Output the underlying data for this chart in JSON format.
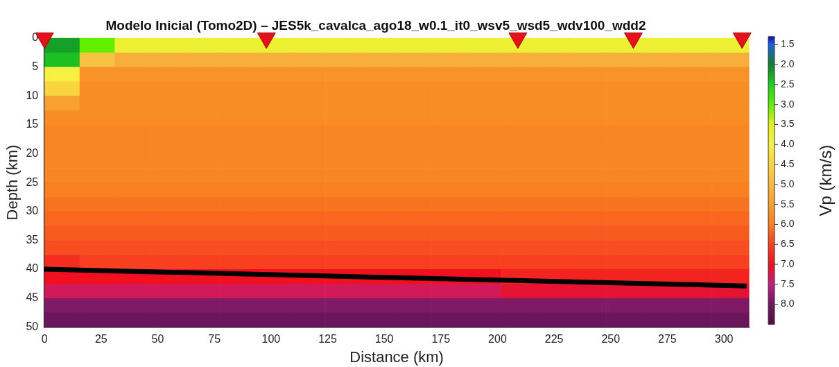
{
  "chart_data": {
    "type": "heatmap",
    "title": "Modelo Inicial (Tomo2D) – JES5k_cavalca_ago18_w0.1_it0_wsv5_wsd5_wdv100_wdd2",
    "xlabel": "Distance (km)",
    "ylabel": "Depth (km)",
    "clabel": "Vp (km/s)",
    "x": [
      7.75,
      23.25,
      38.75,
      54.25,
      69.75,
      85.25,
      100.75,
      116.25,
      131.75,
      147.25,
      162.75,
      178.25,
      193.75,
      209.25,
      224.75,
      240.25,
      255.75,
      271.25,
      286.75,
      302.25
    ],
    "cells": [
      [
        2.2,
        3.0,
        3.8,
        3.8,
        3.8,
        3.8,
        3.8,
        3.8,
        3.8,
        3.8,
        3.8,
        3.8,
        3.8,
        3.8,
        3.8,
        3.8,
        3.8,
        3.8,
        3.8,
        3.8
      ],
      [
        2.4,
        4.8,
        5.2,
        5.2,
        5.2,
        5.2,
        5.2,
        5.2,
        5.2,
        5.2,
        5.2,
        5.2,
        5.2,
        5.2,
        5.2,
        5.2,
        5.2,
        5.2,
        5.2,
        5.2
      ],
      [
        4.0,
        5.7,
        5.7,
        5.7,
        5.7,
        5.7,
        5.7,
        5.7,
        5.7,
        5.7,
        5.7,
        5.7,
        5.7,
        5.7,
        5.7,
        5.7,
        5.7,
        5.7,
        5.7,
        5.7
      ],
      [
        4.5,
        5.8,
        5.8,
        5.8,
        5.8,
        5.8,
        5.8,
        5.8,
        5.8,
        5.8,
        5.8,
        5.8,
        5.8,
        5.8,
        5.8,
        5.8,
        5.8,
        5.8,
        5.8,
        5.8
      ],
      [
        5.5,
        5.8,
        5.8,
        5.8,
        5.8,
        5.8,
        5.8,
        5.8,
        5.8,
        5.8,
        5.8,
        5.8,
        5.8,
        5.8,
        5.8,
        5.8,
        5.8,
        5.8,
        5.8,
        5.8
      ],
      [
        5.8,
        5.8,
        5.8,
        5.8,
        5.8,
        5.8,
        5.8,
        5.8,
        5.8,
        5.8,
        5.8,
        5.8,
        5.8,
        5.8,
        5.8,
        5.8,
        5.8,
        5.8,
        5.8,
        5.8
      ],
      [
        5.9,
        5.9,
        5.9,
        5.9,
        5.9,
        5.9,
        5.9,
        5.9,
        5.9,
        5.9,
        5.9,
        5.9,
        5.9,
        5.9,
        5.9,
        5.9,
        5.9,
        5.9,
        5.9,
        5.9
      ],
      [
        5.9,
        5.9,
        5.9,
        5.9,
        5.9,
        5.9,
        5.9,
        5.9,
        5.9,
        5.9,
        5.9,
        5.9,
        5.9,
        5.9,
        5.9,
        5.9,
        5.9,
        5.9,
        5.9,
        5.9
      ],
      [
        5.9,
        5.9,
        5.9,
        5.9,
        5.9,
        5.9,
        5.9,
        5.9,
        5.9,
        5.9,
        5.9,
        5.9,
        5.9,
        5.9,
        5.9,
        5.9,
        5.9,
        5.9,
        5.9,
        5.9
      ],
      [
        5.9,
        5.9,
        5.9,
        5.9,
        5.9,
        5.9,
        5.9,
        5.9,
        5.9,
        5.9,
        5.9,
        5.9,
        5.9,
        5.9,
        5.9,
        5.9,
        5.9,
        5.9,
        5.9,
        5.9
      ],
      [
        6.0,
        6.0,
        6.0,
        6.0,
        6.0,
        6.0,
        6.0,
        6.0,
        6.0,
        6.0,
        6.0,
        6.0,
        6.0,
        6.0,
        6.0,
        6.0,
        6.0,
        6.0,
        6.0,
        6.0
      ],
      [
        6.1,
        6.1,
        6.1,
        6.1,
        6.1,
        6.1,
        6.1,
        6.1,
        6.1,
        6.1,
        6.1,
        6.1,
        6.1,
        6.1,
        6.1,
        6.1,
        6.1,
        6.1,
        6.1,
        6.1
      ],
      [
        6.2,
        6.2,
        6.2,
        6.2,
        6.2,
        6.2,
        6.2,
        6.2,
        6.2,
        6.2,
        6.2,
        6.2,
        6.2,
        6.2,
        6.2,
        6.2,
        6.2,
        6.2,
        6.2,
        6.2
      ],
      [
        6.3,
        6.3,
        6.3,
        6.3,
        6.3,
        6.3,
        6.3,
        6.3,
        6.3,
        6.3,
        6.3,
        6.3,
        6.3,
        6.3,
        6.3,
        6.3,
        6.3,
        6.3,
        6.3,
        6.3
      ],
      [
        6.4,
        6.4,
        6.4,
        6.4,
        6.4,
        6.4,
        6.4,
        6.4,
        6.4,
        6.4,
        6.4,
        6.4,
        6.4,
        6.4,
        6.4,
        6.4,
        6.4,
        6.4,
        6.4,
        6.4
      ],
      [
        6.7,
        6.5,
        6.5,
        6.5,
        6.5,
        6.5,
        6.5,
        6.5,
        6.5,
        6.5,
        6.5,
        6.5,
        6.5,
        6.5,
        6.5,
        6.5,
        6.5,
        6.5,
        6.5,
        6.5
      ],
      [
        7.0,
        7.0,
        7.0,
        7.0,
        7.0,
        7.0,
        7.0,
        7.0,
        7.0,
        7.0,
        7.0,
        7.0,
        7.0,
        6.8,
        6.8,
        6.8,
        6.8,
        6.8,
        6.8,
        6.8
      ],
      [
        7.3,
        7.3,
        7.3,
        7.3,
        7.3,
        7.3,
        7.3,
        7.3,
        7.3,
        7.3,
        7.3,
        7.3,
        7.3,
        7.1,
        7.1,
        7.1,
        7.1,
        7.1,
        7.1,
        7.1
      ],
      [
        7.9,
        7.9,
        7.9,
        7.9,
        7.9,
        7.9,
        7.9,
        7.9,
        7.9,
        7.9,
        7.9,
        7.9,
        7.9,
        7.9,
        7.9,
        7.9,
        7.9,
        7.9,
        7.9,
        7.9
      ],
      [
        8.1,
        8.1,
        8.1,
        8.1,
        8.1,
        8.1,
        8.1,
        8.1,
        8.1,
        8.1,
        8.1,
        8.1,
        8.1,
        8.1,
        8.1,
        8.1,
        8.1,
        8.1,
        8.1,
        8.1
      ]
    ],
    "series": [
      {
        "type": "line",
        "x": [
          0,
          310
        ],
        "values": [
          40,
          42.9
        ],
        "color": "#000000"
      },
      {
        "type": "scatter",
        "x": [
          0,
          98,
          209,
          260,
          308
        ],
        "values": [
          0,
          0,
          0,
          0,
          0
        ],
        "color": "#e8101a",
        "marker": "triangle"
      }
    ],
    "xlim": [
      0,
      311
    ],
    "xticks": [
      0,
      25,
      50,
      75,
      100,
      125,
      150,
      175,
      200,
      225,
      250,
      275,
      300
    ],
    "ylim": [
      50,
      0
    ],
    "yticks": [
      0,
      5,
      10,
      15,
      20,
      25,
      30,
      35,
      40,
      45,
      50
    ],
    "clim": [
      1.3,
      8.5
    ],
    "cticks": [
      1.5,
      {
        "value": 2,
        "label": "2.0"
      },
      2.5,
      {
        "value": 3,
        "label": "3.0"
      },
      3.5,
      {
        "value": 4,
        "label": "4.0"
      },
      4.5,
      {
        "value": 5,
        "label": "5.0"
      },
      5.5,
      {
        "value": 6,
        "label": "6.0"
      },
      6.5,
      {
        "value": 7,
        "label": "7.0"
      },
      7.5,
      {
        "value": 8,
        "label": "8.0"
      }
    ],
    "grid": false,
    "legend": false
  }
}
